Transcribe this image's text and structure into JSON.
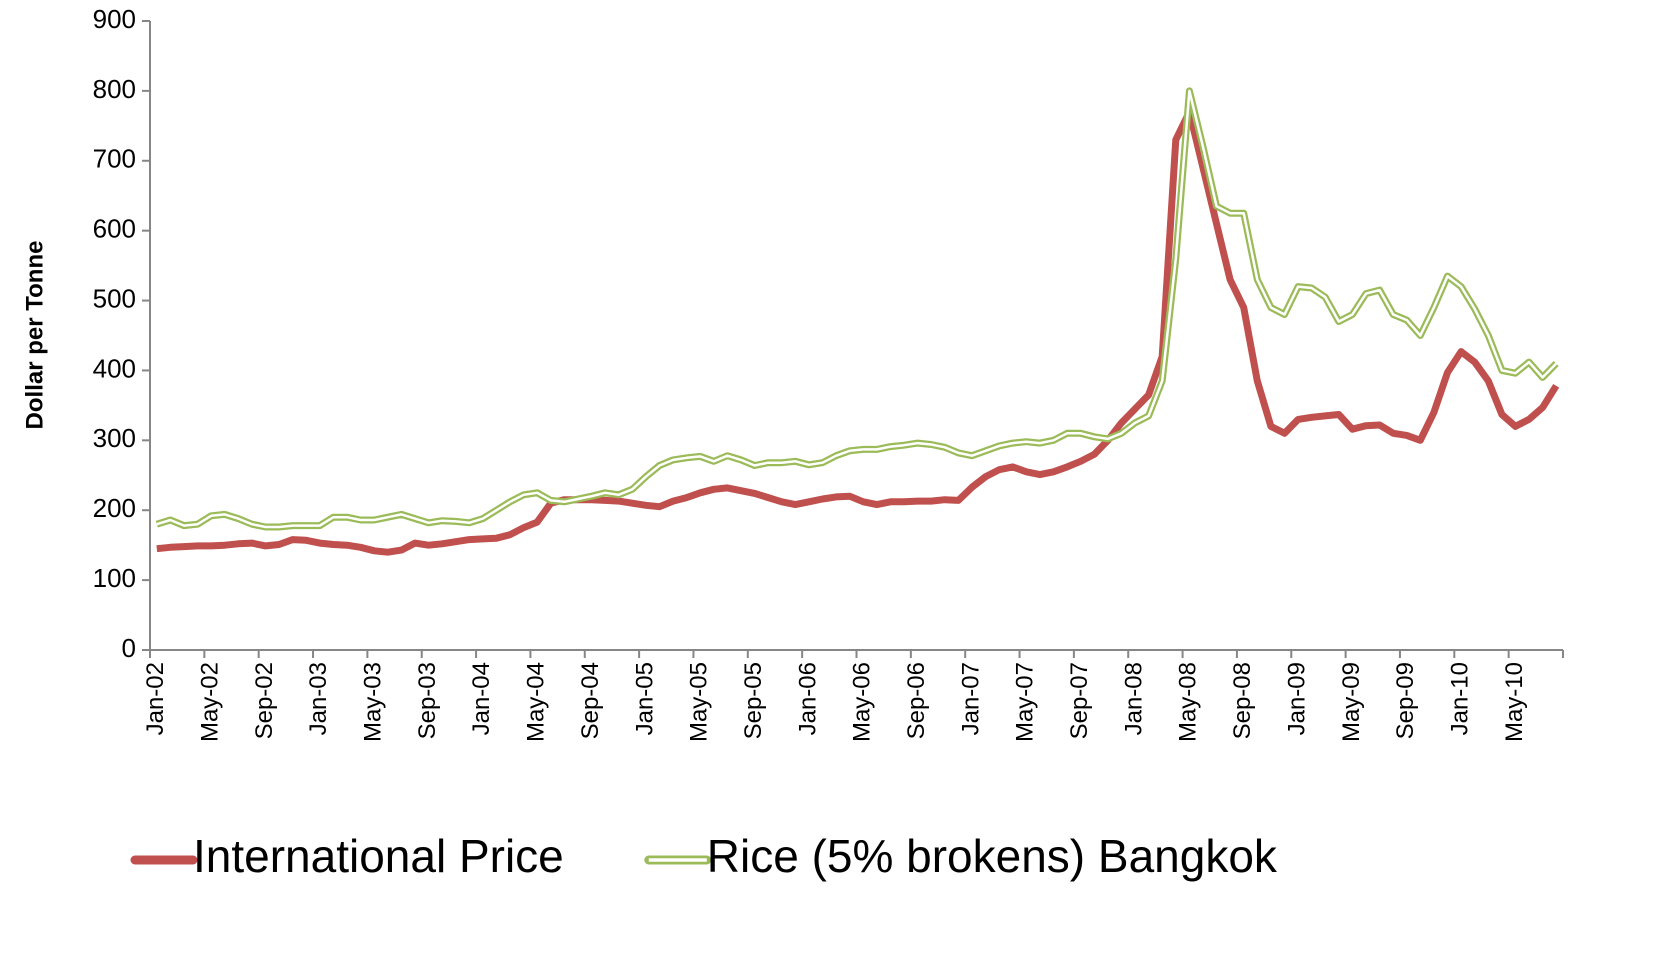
{
  "chart_data": {
    "type": "line",
    "y_label": "Dollar per Tonne",
    "categories": [
      "Jan-02",
      null,
      null,
      null,
      "May-02",
      null,
      null,
      null,
      "Sep-02",
      null,
      null,
      null,
      "Jan-03",
      null,
      null,
      null,
      "May-03",
      null,
      null,
      null,
      "Sep-03",
      null,
      null,
      null,
      "Jan-04",
      null,
      null,
      null,
      "May-04",
      null,
      null,
      null,
      "Sep-04",
      null,
      null,
      null,
      "Jan-05",
      null,
      null,
      null,
      "May-05",
      null,
      null,
      null,
      "Sep-05",
      null,
      null,
      null,
      "Jan-06",
      null,
      null,
      null,
      "May-06",
      null,
      null,
      null,
      "Sep-06",
      null,
      null,
      null,
      "Jan-07",
      null,
      null,
      null,
      "May-07",
      null,
      null,
      null,
      "Sep-07",
      null,
      null,
      null,
      "Jan-08",
      null,
      null,
      null,
      "May-08",
      null,
      null,
      null,
      "Sep-08",
      null,
      null,
      null,
      "Jan-09",
      null,
      null,
      null,
      "May-09",
      null,
      null,
      null,
      "Sep-09",
      null,
      null,
      null,
      "Jan-10",
      null,
      null,
      null,
      "May-10",
      null,
      null,
      null
    ],
    "series": [
      {
        "name": "International Price",
        "color": "#c0504d",
        "style": "solid",
        "values": [
          145,
          147,
          148,
          149,
          149,
          150,
          152,
          153,
          149,
          151,
          158,
          157,
          153,
          151,
          150,
          147,
          142,
          140,
          143,
          153,
          150,
          152,
          155,
          158,
          159,
          160,
          165,
          175,
          183,
          210,
          215,
          215,
          215,
          214,
          213,
          210,
          207,
          205,
          213,
          218,
          225,
          230,
          232,
          228,
          224,
          218,
          212,
          208,
          212,
          216,
          219,
          220,
          212,
          208,
          212,
          212,
          213,
          213,
          215,
          214,
          233,
          248,
          258,
          262,
          255,
          251,
          255,
          262,
          270,
          280,
          300,
          325,
          345,
          365,
          420,
          730,
          770,
          690,
          610,
          530,
          490,
          385,
          320,
          310,
          330,
          333,
          335,
          337,
          316,
          321,
          322,
          310,
          307,
          300,
          340,
          397,
          427,
          412,
          385,
          337,
          320,
          330,
          347,
          378
        ]
      },
      {
        "name": "Rice (5% brokens) Bangkok",
        "color": "#9bbb59",
        "style": "double",
        "values": [
          180,
          186,
          178,
          180,
          192,
          194,
          188,
          180,
          176,
          176,
          178,
          178,
          178,
          190,
          190,
          186,
          186,
          190,
          194,
          188,
          182,
          185,
          184,
          182,
          188,
          200,
          212,
          222,
          225,
          214,
          212,
          216,
          220,
          225,
          222,
          230,
          248,
          264,
          272,
          275,
          277,
          270,
          278,
          272,
          264,
          268,
          268,
          270,
          265,
          268,
          278,
          285,
          287,
          287,
          291,
          293,
          296,
          294,
          290,
          282,
          278,
          285,
          292,
          296,
          298,
          296,
          300,
          310,
          310,
          305,
          302,
          310,
          325,
          335,
          385,
          560,
          800,
          720,
          635,
          625,
          625,
          530,
          490,
          480,
          520,
          518,
          505,
          470,
          480,
          510,
          515,
          480,
          472,
          450,
          490,
          535,
          520,
          488,
          450,
          400,
          396,
          412,
          390,
          410
        ]
      }
    ],
    "ylim": [
      0,
      900
    ],
    "yticks": [
      0,
      100,
      200,
      300,
      400,
      500,
      600,
      700,
      800,
      900
    ],
    "grid": false
  }
}
